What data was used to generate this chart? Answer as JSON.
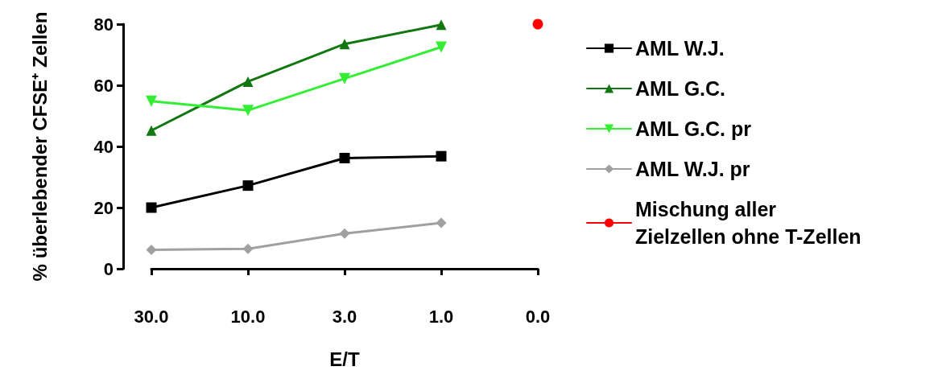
{
  "chart_data": {
    "type": "line",
    "xlabel": "E/T",
    "ylabel": "% überlebender CFSE⁺ Zellen",
    "categories": [
      "30.0",
      "10.0",
      "3.0",
      "1.0",
      "0.0"
    ],
    "ylim": [
      0,
      80
    ],
    "yticks": [
      0,
      20,
      40,
      60,
      80
    ],
    "grid": false,
    "legend": "right",
    "series": [
      {
        "name": "AML W.J.",
        "color": "#000000",
        "marker": "square",
        "values": [
          20,
          27.2,
          36.2,
          36.8,
          null
        ]
      },
      {
        "name": "AML G.C.",
        "color": "#117711",
        "marker": "triangle",
        "values": [
          45.2,
          61.2,
          73.5,
          79.8,
          null
        ]
      },
      {
        "name": "AML G.C. pr",
        "color": "#33ee33",
        "marker": "triangle-down",
        "values": [
          54.8,
          51.8,
          62.2,
          72.5,
          null
        ]
      },
      {
        "name": "AML W.J. pr",
        "color": "#a0a0a0",
        "marker": "diamond",
        "values": [
          6.2,
          6.5,
          11.5,
          15,
          null
        ]
      },
      {
        "name": "Mischung aller Zielzellen ohne T-Zellen",
        "color": "#ff0000",
        "marker": "circle",
        "values": [
          null,
          null,
          null,
          null,
          80
        ]
      }
    ]
  }
}
